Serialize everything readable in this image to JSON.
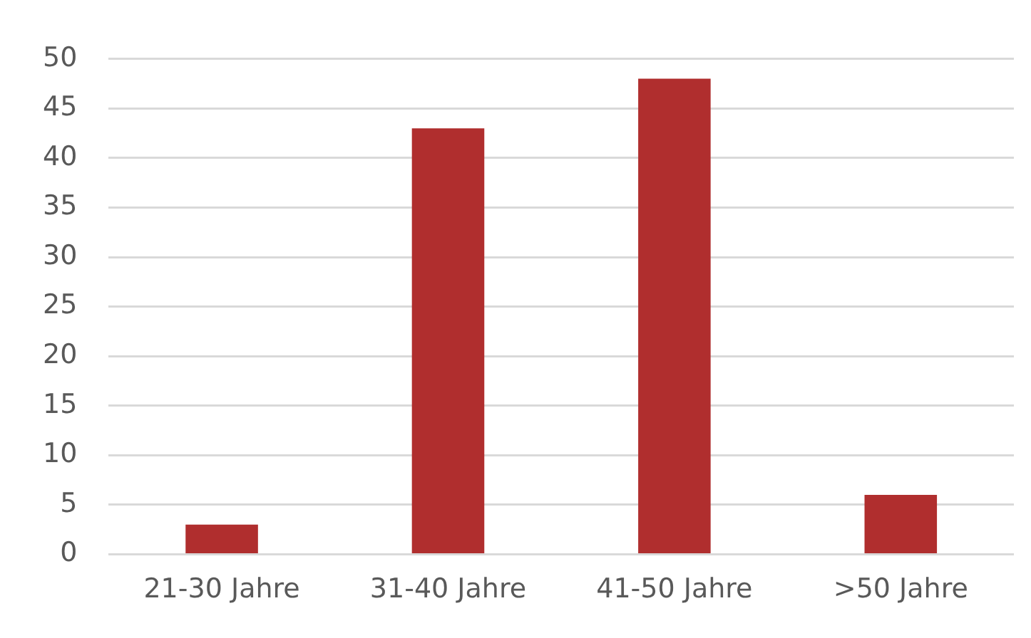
{
  "chart_data": {
    "type": "bar",
    "categories": [
      "21-30 Jahre",
      "31-40 Jahre",
      "41-50 Jahre",
      ">50 Jahre"
    ],
    "values": [
      3,
      43,
      48,
      6
    ],
    "color": "#b02e2e",
    "ylim": [
      0,
      50
    ],
    "yticks": [
      0,
      5,
      10,
      15,
      20,
      25,
      30,
      35,
      40,
      45,
      50
    ],
    "grid": "y",
    "legend": false
  }
}
